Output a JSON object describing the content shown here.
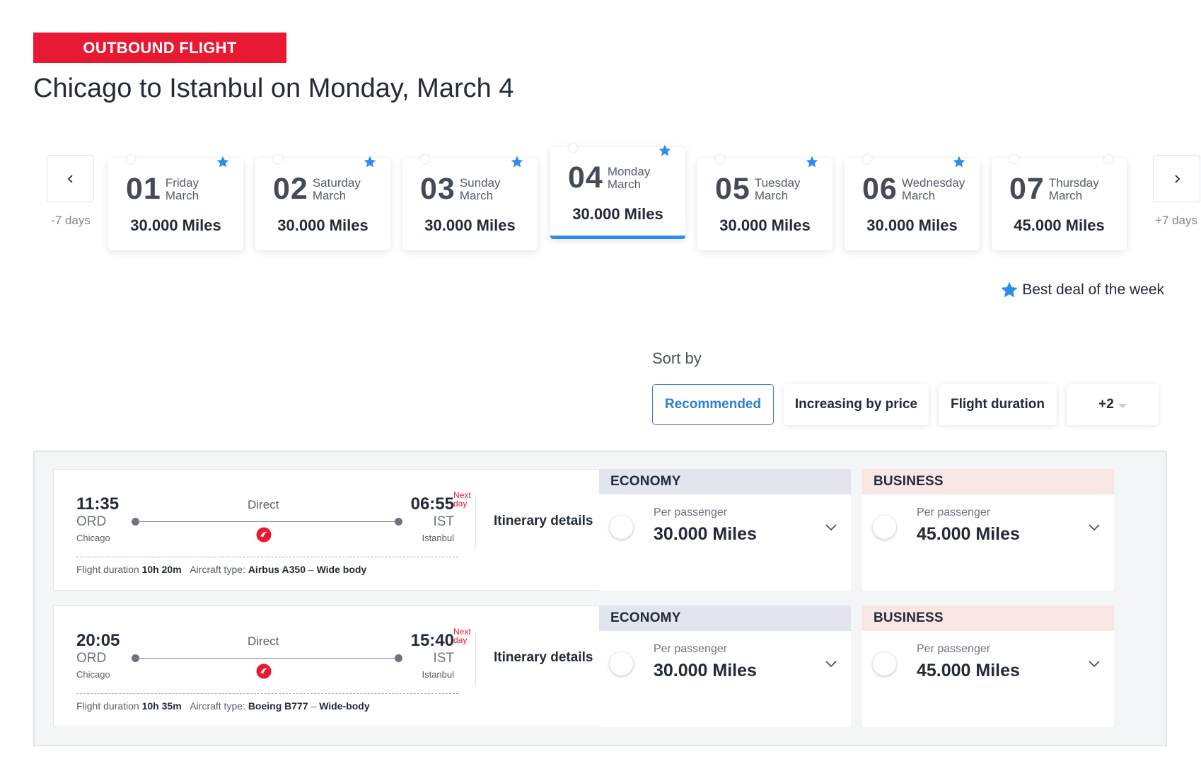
{
  "header": {
    "badge": "OUTBOUND FLIGHT",
    "title": "Chicago to Istanbul on Monday, March 4"
  },
  "date_nav": {
    "prev_label": "-7 days",
    "next_label": "+7 days",
    "days": [
      {
        "num": "01",
        "name": "Friday",
        "month": "March",
        "price": "30.000 Miles",
        "best": true,
        "selected": false
      },
      {
        "num": "02",
        "name": "Saturday",
        "month": "March",
        "price": "30.000 Miles",
        "best": true,
        "selected": false
      },
      {
        "num": "03",
        "name": "Sunday",
        "month": "March",
        "price": "30.000 Miles",
        "best": true,
        "selected": false
      },
      {
        "num": "04",
        "name": "Monday",
        "month": "March",
        "price": "30.000 Miles",
        "best": true,
        "selected": true
      },
      {
        "num": "05",
        "name": "Tuesday",
        "month": "March",
        "price": "30.000 Miles",
        "best": true,
        "selected": false
      },
      {
        "num": "06",
        "name": "Wednesday",
        "month": "March",
        "price": "30.000 Miles",
        "best": true,
        "selected": false
      },
      {
        "num": "07",
        "name": "Thursday",
        "month": "March",
        "price": "45.000 Miles",
        "best": false,
        "selected": false
      }
    ],
    "legend": "Best deal of the week",
    "colors": {
      "star": "#2d8cf0",
      "selected_underline": "#2d8cf0"
    }
  },
  "sort": {
    "label": "Sort by",
    "options": [
      "Recommended",
      "Increasing by price",
      "Flight duration",
      "+2"
    ],
    "active": "Recommended"
  },
  "flights": [
    {
      "dep_time": "11:35",
      "dep_code": "ORD",
      "dep_city": "Chicago",
      "arr_time": "06:55",
      "arr_code": "IST",
      "arr_city": "Istanbul",
      "next_day_1": "Next",
      "next_day_2": "day",
      "stops": "Direct",
      "duration_label": "Flight duration",
      "duration": "10h 20m",
      "aircraft_label": "Aircraft type:",
      "aircraft": "Airbus A350",
      "sep": "–",
      "body": "Wide body",
      "itinerary": "Itinerary details",
      "economy": {
        "label": "ECONOMY",
        "per": "Per passenger",
        "price": "30.000 Miles"
      },
      "business": {
        "label": "BUSINESS",
        "per": "Per passenger",
        "price": "45.000 Miles"
      }
    },
    {
      "dep_time": "20:05",
      "dep_code": "ORD",
      "dep_city": "Chicago",
      "arr_time": "15:40",
      "arr_code": "IST",
      "arr_city": "Istanbul",
      "next_day_1": "Next",
      "next_day_2": "day",
      "stops": "Direct",
      "duration_label": "Flight duration",
      "duration": "10h 35m",
      "aircraft_label": "Aircraft type:",
      "aircraft": "Boeing B777",
      "sep": "–",
      "body": "Wide-body",
      "itinerary": "Itinerary details",
      "economy": {
        "label": "ECONOMY",
        "per": "Per passenger",
        "price": "30.000 Miles"
      },
      "business": {
        "label": "BUSINESS",
        "per": "Per passenger",
        "price": "45.000 Miles"
      }
    }
  ],
  "brand": {
    "badge_red": "#e81932",
    "accent_blue": "#2f7fd1",
    "economy_bg": "#e2e5ee",
    "business_bg": "#f7e6e4"
  }
}
